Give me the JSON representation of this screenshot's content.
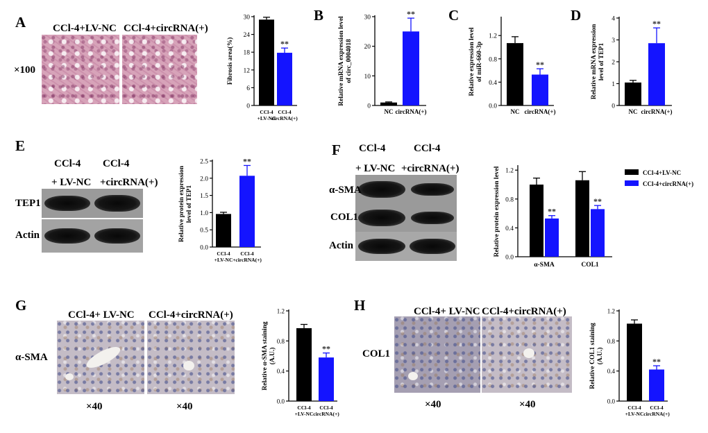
{
  "panels": {
    "A": {
      "label": "A",
      "image_headers": [
        "CCl-4+LV-NC",
        "CCl-4+circRNA(+)"
      ],
      "magnification": "×100"
    },
    "E": {
      "label": "E",
      "blot_headers": [
        [
          "CCl-4",
          "+ LV-NC"
        ],
        [
          "CCl-4",
          "+circRNA(+)"
        ]
      ],
      "blot_rows": [
        "TEP1",
        "Actin"
      ]
    },
    "F": {
      "label": "F",
      "blot_headers": [
        [
          "CCl-4",
          "+ LV-NC"
        ],
        [
          "CCl-4",
          "+circRNA(+)"
        ]
      ],
      "blot_rows": [
        "α-SMA",
        "COL1",
        "Actin"
      ]
    },
    "G": {
      "label": "G",
      "image_headers": [
        "CCl-4+ LV-NC",
        "CCl-4+circRNA(+)"
      ],
      "row_label": "α-SMA",
      "magnifications": [
        "×40",
        "×40"
      ]
    },
    "H": {
      "label": "H",
      "image_headers": [
        "CCl-4+ LV-NC",
        "CCl-4+circRNA(+)"
      ],
      "row_label": "COL1",
      "magnifications": [
        "×40",
        "×40"
      ]
    }
  },
  "colors": {
    "control": "#000000",
    "treatment": "#1414ff"
  },
  "chart_data": [
    {
      "id": "A-chart",
      "panel": "A",
      "type": "bar",
      "categories": [
        [
          "CCl-4",
          "+LV-NC"
        ],
        [
          "CCl-4",
          "circRNA(+)"
        ]
      ],
      "values": [
        29,
        17.8
      ],
      "errors": [
        0.8,
        1.6
      ],
      "ylabel": "Fibrosis area(%)",
      "ylim": [
        0,
        30
      ],
      "ticks": [
        0,
        6,
        12,
        18,
        24,
        30
      ],
      "tick_labels": [
        "0",
        "6",
        "12",
        "18",
        "24",
        "30"
      ],
      "significance": [
        "",
        "**"
      ]
    },
    {
      "id": "B-chart",
      "panel": "B",
      "label": "B",
      "type": "bar",
      "categories": [
        [
          "NC"
        ],
        [
          "circRNA(+)"
        ]
      ],
      "values": [
        1,
        25
      ],
      "errors": [
        0.2,
        4.5
      ],
      "ylabel": [
        "Relative mRNA expression level",
        "of circ_0004018"
      ],
      "ylim": [
        0,
        30
      ],
      "ticks": [
        0,
        10,
        20,
        30
      ],
      "tick_labels": [
        "0",
        "10",
        "20",
        "30"
      ],
      "significance": [
        "",
        "**"
      ]
    },
    {
      "id": "C-chart",
      "panel": "C",
      "label": "C",
      "type": "bar",
      "categories": [
        [
          "NC"
        ],
        [
          "circRNA(+)"
        ]
      ],
      "values": [
        1.07,
        0.53
      ],
      "errors": [
        0.11,
        0.1
      ],
      "ylabel": [
        "Relative expression level",
        "of miR-660-3p"
      ],
      "ylim": [
        0,
        1.5
      ],
      "ticks": [
        0,
        0.4,
        0.8,
        1.2
      ],
      "tick_labels": [
        "0.0",
        "0.4",
        "0.8",
        "1.2"
      ],
      "significance": [
        "",
        "**"
      ]
    },
    {
      "id": "D-chart",
      "panel": "D",
      "label": "D",
      "type": "bar",
      "categories": [
        [
          "NC"
        ],
        [
          "circRNA(+)"
        ]
      ],
      "values": [
        1.05,
        2.85
      ],
      "errors": [
        0.1,
        0.7
      ],
      "ylabel": [
        "Relative mRNA expression",
        "level of TEP1"
      ],
      "ylim": [
        0,
        4
      ],
      "ticks": [
        0,
        1,
        2,
        3,
        4
      ],
      "tick_labels": [
        "0",
        "1",
        "2",
        "3",
        "4"
      ],
      "significance": [
        "",
        "**"
      ]
    },
    {
      "id": "E-chart",
      "panel": "E",
      "type": "bar",
      "categories": [
        [
          "CCl-4",
          "+LV-NC"
        ],
        [
          "CCl-4",
          "+circRNA(+)"
        ]
      ],
      "values": [
        0.96,
        2.07
      ],
      "errors": [
        0.05,
        0.3
      ],
      "ylabel": [
        "Relative protein expression",
        "level of TEP1"
      ],
      "ylim": [
        0,
        2.5
      ],
      "ticks": [
        0,
        0.5,
        1,
        1.5,
        2,
        2.5
      ],
      "tick_labels": [
        "0.0",
        "0.5",
        "1.0",
        "1.5",
        "2.0",
        "2.5"
      ],
      "significance": [
        "",
        "**"
      ]
    },
    {
      "id": "F-chart",
      "panel": "F",
      "type": "bar",
      "grouped": true,
      "categories": [
        [
          "α-SMA"
        ],
        [
          "COL1"
        ]
      ],
      "series": [
        {
          "name": "CCl-4+LV-NC",
          "values": [
            1.0,
            1.06
          ],
          "errors": [
            0.09,
            0.12
          ]
        },
        {
          "name": "CCl-4+circRNA(+)",
          "values": [
            0.53,
            0.66
          ],
          "errors": [
            0.04,
            0.05
          ]
        }
      ],
      "ylabel": "Relative protein expression level",
      "ylim": [
        0,
        1.25
      ],
      "ticks": [
        0,
        0.4,
        0.8,
        1.2
      ],
      "tick_labels": [
        "0.0",
        "0.4",
        "0.8",
        "1.2"
      ],
      "legend": "top-right",
      "significance": [
        "",
        "**"
      ]
    },
    {
      "id": "G-chart",
      "panel": "G",
      "type": "bar",
      "categories": [
        [
          "CCl-4",
          "+LV-NC"
        ],
        [
          "CCl-4",
          "circRNA(+)"
        ]
      ],
      "values": [
        0.97,
        0.58
      ],
      "errors": [
        0.05,
        0.06
      ],
      "ylabel": [
        "Relative α-SMA staining",
        "(A.U.)"
      ],
      "ylim": [
        0,
        1.2
      ],
      "ticks": [
        0,
        0.4,
        0.8,
        1.2
      ],
      "tick_labels": [
        "0.0",
        "0.4",
        "0.8",
        "1.2"
      ],
      "significance": [
        "",
        "**"
      ]
    },
    {
      "id": "H-chart",
      "panel": "H",
      "type": "bar",
      "categories": [
        [
          "CCl-4",
          "+LV-NC"
        ],
        [
          "CCl-4",
          "circRNA(+)"
        ]
      ],
      "values": [
        1.03,
        0.42
      ],
      "errors": [
        0.05,
        0.05
      ],
      "ylabel": [
        "Relative COL1 staining",
        "(A.U.)"
      ],
      "ylim": [
        0,
        1.2
      ],
      "ticks": [
        0,
        0.4,
        0.8,
        1.2
      ],
      "tick_labels": [
        "0.0",
        "0.4",
        "0.8",
        "1.2"
      ],
      "significance": [
        "",
        "**"
      ]
    }
  ]
}
